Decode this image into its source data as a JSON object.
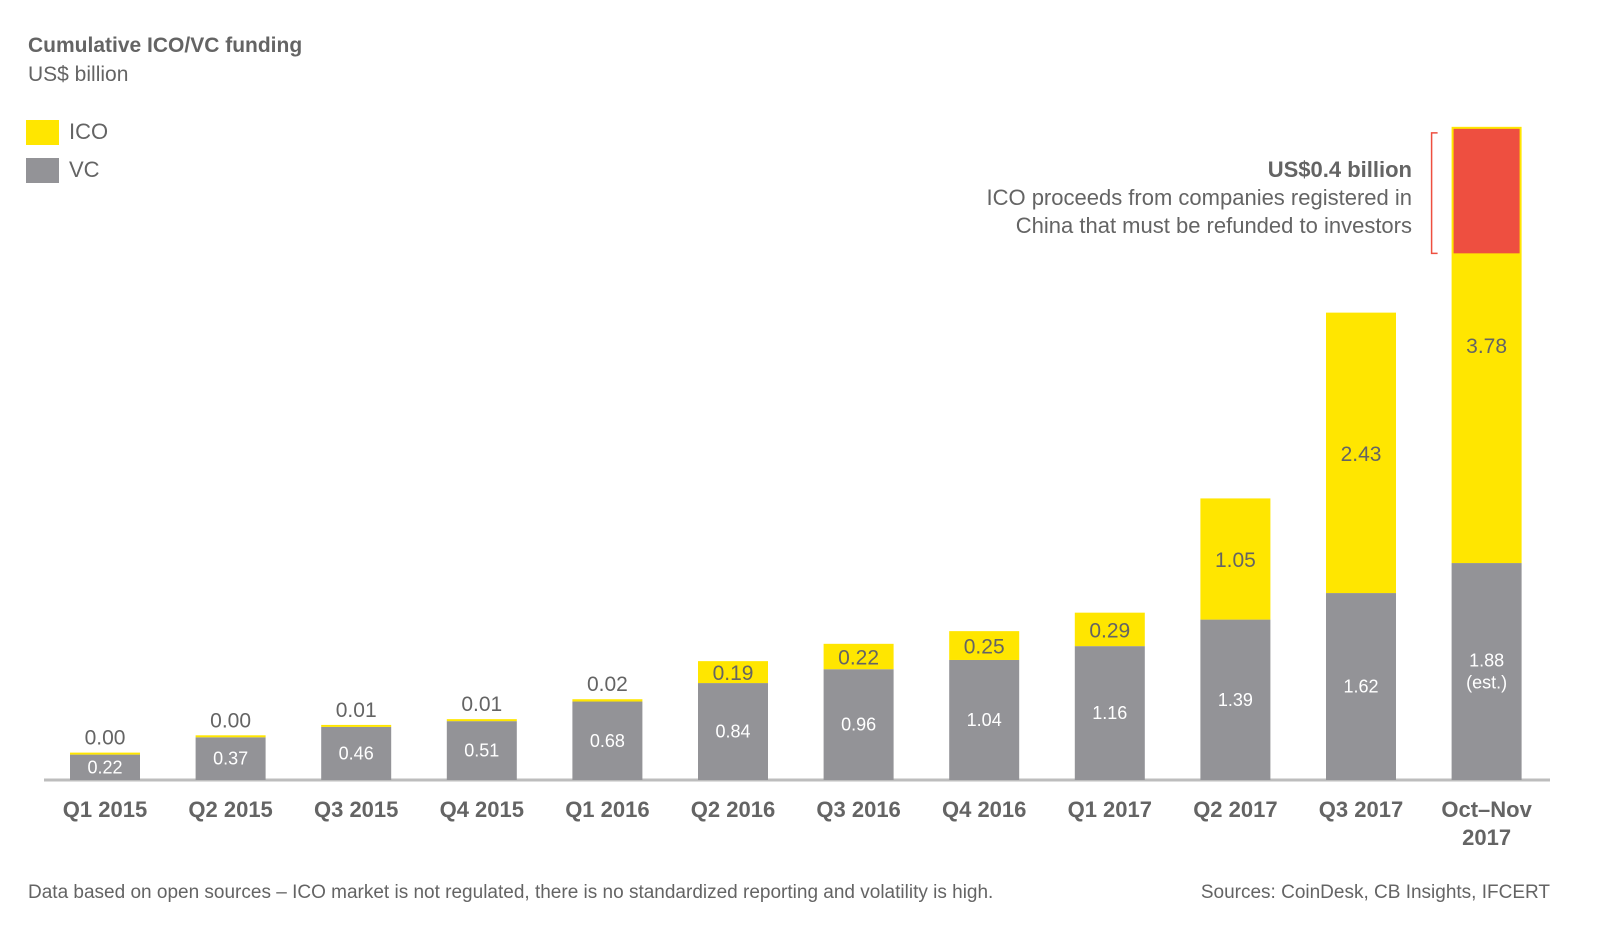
{
  "chart_data": {
    "type": "bar",
    "stacked": true,
    "title": "Cumulative ICO/VC funding",
    "subtitle": "US$ billion",
    "categories": [
      "Q1 2015",
      "Q2 2015",
      "Q3 2015",
      "Q4 2015",
      "Q1 2016",
      "Q2 2016",
      "Q3 2016",
      "Q4 2016",
      "Q1 2017",
      "Q2 2017",
      "Q3 2017",
      "Oct–Nov 2017"
    ],
    "series": [
      {
        "name": "VC",
        "color": "#939397",
        "values": [
          0.22,
          0.37,
          0.46,
          0.51,
          0.68,
          0.84,
          0.96,
          1.04,
          1.16,
          1.39,
          1.62,
          1.88
        ],
        "labels": [
          "0.22",
          "0.37",
          "0.46",
          "0.51",
          "0.68",
          "0.84",
          "0.96",
          "1.04",
          "1.16",
          "1.39",
          "1.62",
          "1.88 (est.)"
        ]
      },
      {
        "name": "ICO",
        "color": "#FFE600",
        "values": [
          0.0,
          0.0,
          0.01,
          0.01,
          0.02,
          0.19,
          0.22,
          0.25,
          0.29,
          1.05,
          2.43,
          3.78
        ],
        "labels": [
          "0.00",
          "0.00",
          "0.01",
          "0.01",
          "0.02",
          "0.19",
          "0.22",
          "0.25",
          "0.29",
          "1.05",
          "2.43",
          "3.78"
        ]
      }
    ],
    "highlight": {
      "category": "Oct–Nov 2017",
      "value": 0.4,
      "color": "#EE4F40",
      "title": "US$0.4 billion",
      "text_lines": [
        "ICO proceeds from companies registered in",
        "China that must be refunded to investors"
      ]
    },
    "legend": "top-left",
    "grid": false,
    "ylim": [
      0,
      5.66
    ]
  },
  "footer": {
    "note": "Data based on open sources – ICO market is not regulated, there is no standardized reporting and volatility is high.",
    "sources": "Sources: CoinDesk, CB Insights, IFCERT"
  }
}
